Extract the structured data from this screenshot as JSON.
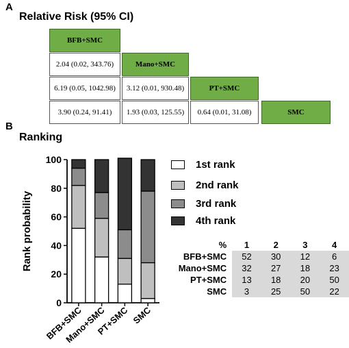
{
  "panel_a": {
    "letter": "A",
    "title": "Relative Risk (95% CI)",
    "treatments": [
      "BFB+SMC",
      "Mano+SMC",
      "PT+SMC",
      "SMC"
    ],
    "cells": [
      [
        "2.04 (0.02, 343.76)"
      ],
      [
        "6.19 (0.05, 1042.98)",
        "3.12 (0.01, 930.48)"
      ],
      [
        "3.90 (0.24, 91.41)",
        "1.93 (0.03, 125.55)",
        "0.64 (0.01, 31.08)"
      ]
    ],
    "colors": {
      "treatment_fill": "#70ad47"
    }
  },
  "panel_b": {
    "letter": "B",
    "title": "Ranking",
    "legend": [
      "1st  rank",
      "2nd rank",
      "3rd  rank",
      "4th  rank"
    ],
    "table": {
      "corner": "%",
      "headers": [
        "1",
        "2",
        "3",
        "4"
      ],
      "rows": [
        {
          "label": "BFB+SMC",
          "values": [
            "52",
            "30",
            "12",
            "6"
          ]
        },
        {
          "label": "Mano+SMC",
          "values": [
            "32",
            "27",
            "18",
            "23"
          ]
        },
        {
          "label": "PT+SMC",
          "values": [
            "13",
            "18",
            "20",
            "50"
          ]
        },
        {
          "label": "SMC",
          "values": [
            "3",
            "25",
            "50",
            "22"
          ]
        }
      ]
    }
  },
  "chart_data": {
    "type": "bar",
    "stacked": true,
    "categories": [
      "BFB+SMC",
      "Mano+SMC",
      "PT+SMC",
      "SMC"
    ],
    "series": [
      {
        "name": "1st  rank",
        "values": [
          52,
          32,
          13,
          3
        ],
        "color": "#ffffff"
      },
      {
        "name": "2nd rank",
        "values": [
          30,
          27,
          18,
          25
        ],
        "color": "#bfbfbf"
      },
      {
        "name": "3rd  rank",
        "values": [
          12,
          18,
          20,
          50
        ],
        "color": "#8c8c8c"
      },
      {
        "name": "4th  rank",
        "values": [
          6,
          23,
          50,
          22
        ],
        "color": "#333333"
      }
    ],
    "ylabel": "Rank probability",
    "xlabel": "",
    "ylim": [
      0,
      100
    ],
    "yticks": [
      "0",
      "20",
      "40",
      "60",
      "80",
      "100"
    ],
    "grid": false,
    "legend_position": "right"
  }
}
